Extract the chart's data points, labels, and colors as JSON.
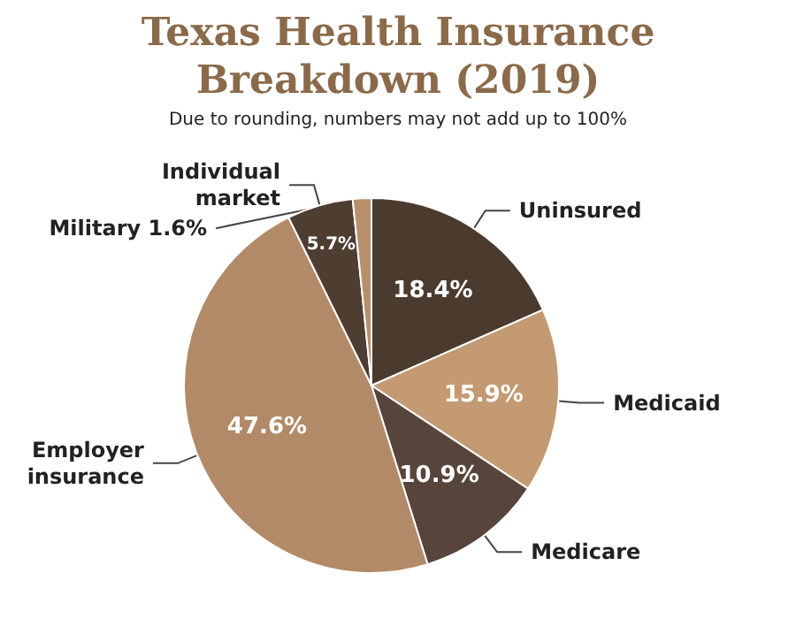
{
  "chart_data": {
    "type": "pie",
    "title": "Texas Health Insurance\nBreakdown (2019)",
    "subtitle": "Due to rounding, numbers may not add up to 100%",
    "categories": [
      "Uninsured",
      "Medicaid",
      "Medicare",
      "Employer\ninsurance",
      "Individual\nmarket",
      "Military 1.6%"
    ],
    "values": [
      18.4,
      15.9,
      10.9,
      47.6,
      5.7,
      1.6
    ],
    "value_labels": [
      "18.4%",
      "15.9%",
      "10.9%",
      "47.6%",
      "5.7%",
      null
    ],
    "colors": [
      "#4b3b2f",
      "#c39a71",
      "#57443a",
      "#b28a67",
      "#4e3d31",
      "#b88f6b"
    ],
    "legend": false
  }
}
